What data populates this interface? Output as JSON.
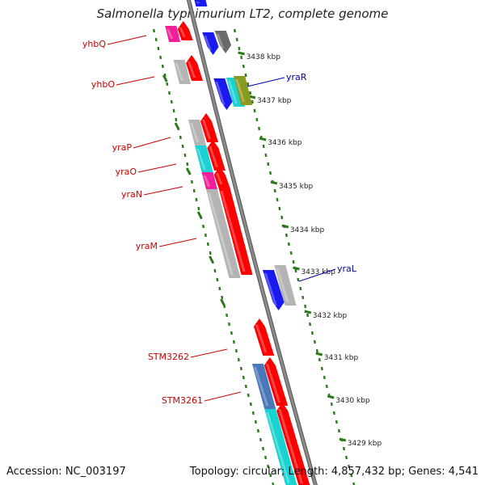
{
  "title": "Salmonella typhimurium LT2, complete genome",
  "footer": {
    "accession": "Accession: NC_003197",
    "summary": "Topology: circular; Length: 4,857,432 bp; Genes: 4,541"
  },
  "colors": {
    "backbone": "#8a8a8a",
    "ruler": "#2a7a1a",
    "label_reverse": "#cc0000",
    "label_forward": "#0000aa",
    "red": "#ff0000",
    "blue": "#1a1af0",
    "gray": "#b4b4b4",
    "darkgray": "#6a6a6a",
    "cyan": "#19d2d2",
    "magenta": "#f0209a",
    "olive": "#8a9a20",
    "steelblue": "#4a78b8"
  },
  "ruler_labels": [
    "3438 kbp",
    "3437 kbp",
    "3436 kbp",
    "3435 kbp",
    "3434 kbp",
    "3433 kbp",
    "3432 kbp",
    "3431 kbp",
    "3430 kbp",
    "3429 kbp"
  ],
  "gene_labels_reverse": [
    "yhbQ",
    "yhbO",
    "yraP",
    "yraO",
    "yraN",
    "yraM",
    "STM3262",
    "STM3261"
  ],
  "gene_labels_forward": [
    "yraR",
    "yraL"
  ]
}
